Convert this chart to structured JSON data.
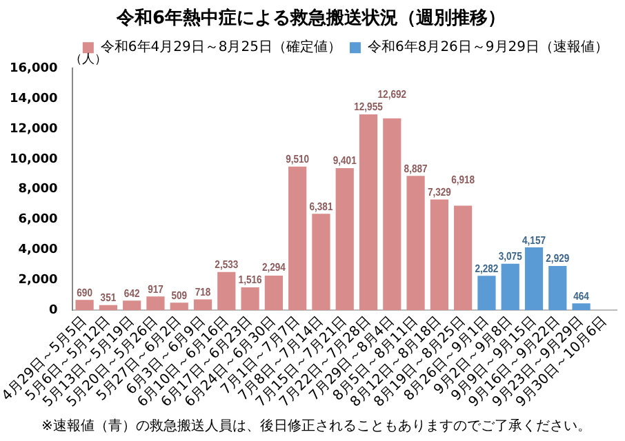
{
  "chart_data": {
    "type": "bar",
    "title": "令和6年熱中症による救急搬送状況（週別推移）",
    "ylabel": "（人）",
    "categories": [
      "4月29日～5月5日",
      "5月6日～5月12日",
      "5月13日～5月19日",
      "5月20日～5月26日",
      "5月27日～6月2日",
      "6月3日～6月9日",
      "6月10日～6月16日",
      "6月17日～6月23日",
      "6月24日～6月30日",
      "7月1日～7月7日",
      "7月8日～7月14日",
      "7月15日～7月21日",
      "7月22日～7月28日",
      "7月29日～8月4日",
      "8月5日～8月11日",
      "8月12日～8月18日",
      "8月19日～8月25日",
      "8月26日～9月1日",
      "9月2日～9月8日",
      "9月9日～9月15日",
      "9月16日～9月22日",
      "9月23日～9月29日",
      "9月30日～10月6日"
    ],
    "series": [
      {
        "name": "令和6年4月29日～8月25日（確定値）",
        "color": "#d98c8c",
        "values": [
          690,
          351,
          642,
          917,
          509,
          718,
          2533,
          1516,
          2294,
          9510,
          6381,
          9401,
          12955,
          12692,
          8887,
          7329,
          6918,
          null,
          null,
          null,
          null,
          null,
          null
        ],
        "value_labels": [
          "690",
          "351",
          "642",
          "917",
          "509",
          "718",
          "2,533",
          "1,516",
          "2,294",
          "9,510",
          "6,381",
          "9,401",
          "12,955",
          "12,692",
          "8,887",
          "7,329",
          "6,918",
          null,
          null,
          null,
          null,
          null,
          null
        ]
      },
      {
        "name": "令和6年8月26日～9月29日（速報値）",
        "color": "#5b9bd5",
        "values": [
          null,
          null,
          null,
          null,
          null,
          null,
          null,
          null,
          null,
          null,
          null,
          null,
          null,
          null,
          null,
          null,
          null,
          2282,
          3075,
          4157,
          2929,
          464,
          null
        ],
        "value_labels": [
          null,
          null,
          null,
          null,
          null,
          null,
          null,
          null,
          null,
          null,
          null,
          null,
          null,
          null,
          null,
          null,
          null,
          "2,282",
          "3,075",
          "4,157",
          "2,929",
          "464",
          null
        ]
      }
    ],
    "ylim": [
      0,
      16000
    ],
    "yticks": [
      {
        "value": 0,
        "label": "0"
      },
      {
        "value": 2000,
        "label": "2,000"
      },
      {
        "value": 4000,
        "label": "4,000"
      },
      {
        "value": 6000,
        "label": "6,000"
      },
      {
        "value": 8000,
        "label": "8,000"
      },
      {
        "value": 10000,
        "label": "10,000"
      },
      {
        "value": 12000,
        "label": "12,000"
      },
      {
        "value": 14000,
        "label": "14,000"
      },
      {
        "value": 16000,
        "label": "16,000"
      }
    ],
    "grid": false,
    "legend": "top right",
    "annotations": [
      "※速報値（青）の救急搬送人員は、後日修正されることもありますのでご了承ください。"
    ]
  }
}
